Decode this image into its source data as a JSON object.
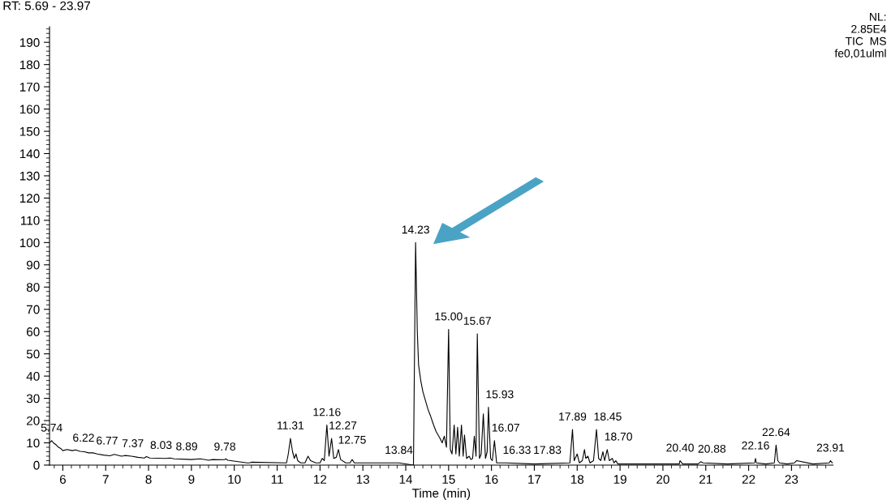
{
  "chart_data": {
    "type": "line",
    "xlabel": "Time (min)",
    "xlim": [
      5.69,
      23.97
    ],
    "xticks": [
      6,
      7,
      8,
      9,
      10,
      11,
      12,
      13,
      14,
      15,
      16,
      17,
      18,
      19,
      20,
      21,
      22,
      23
    ],
    "ylim": [
      0,
      197
    ],
    "yticks": [
      0,
      10,
      20,
      30,
      40,
      50,
      60,
      70,
      80,
      90,
      100,
      110,
      120,
      130,
      140,
      150,
      160,
      170,
      180,
      190
    ],
    "grid": false,
    "marker": "none",
    "line_style": "solid",
    "series": [
      {
        "color": "#000000",
        "x": [
          5.69,
          5.74,
          5.78,
          5.85,
          5.9,
          5.95,
          6.0,
          6.1,
          6.22,
          6.3,
          6.4,
          6.5,
          6.6,
          6.7,
          6.77,
          6.8,
          6.95,
          7.1,
          7.2,
          7.37,
          7.45,
          7.6,
          7.75,
          7.9,
          7.95,
          8.03,
          8.4,
          8.5,
          8.6,
          8.89,
          9.0,
          9.2,
          9.4,
          9.5,
          9.6,
          9.78,
          9.8,
          9.85,
          10.3,
          10.35,
          10.4,
          11.2,
          11.22,
          11.26,
          11.31,
          11.36,
          11.4,
          11.44,
          11.48,
          11.55,
          11.65,
          11.72,
          11.78,
          11.9,
          12.0,
          12.05,
          12.1,
          12.16,
          12.21,
          12.27,
          12.32,
          12.38,
          12.43,
          12.48,
          12.6,
          12.7,
          12.75,
          12.8,
          13.84,
          14.18,
          14.23,
          14.27,
          14.3,
          14.35,
          14.4,
          14.46,
          14.52,
          14.58,
          14.65,
          14.71,
          14.8,
          14.85,
          14.9,
          14.95,
          15.0,
          15.04,
          15.08,
          15.13,
          15.17,
          15.21,
          15.25,
          15.3,
          15.34,
          15.37,
          15.42,
          15.48,
          15.52,
          15.56,
          15.6,
          15.64,
          15.67,
          15.72,
          15.76,
          15.81,
          15.86,
          15.9,
          15.93,
          15.98,
          16.02,
          16.07,
          16.12,
          16.33,
          17.0,
          17.83,
          17.89,
          17.93,
          18.0,
          18.05,
          18.12,
          18.17,
          18.2,
          18.25,
          18.3,
          18.38,
          18.45,
          18.5,
          18.55,
          18.6,
          18.64,
          18.7,
          18.75,
          18.82,
          18.86,
          18.9,
          18.95,
          19.5,
          20.38,
          20.4,
          20.46,
          20.6,
          20.82,
          20.88,
          20.94,
          21.5,
          22.14,
          22.16,
          22.18,
          22.4,
          22.6,
          22.64,
          22.68,
          22.72,
          22.9,
          23.07,
          23.12,
          23.5,
          23.88,
          23.91,
          23.95
        ],
        "values": [
          10,
          11,
          10,
          9,
          8,
          7.5,
          6.5,
          7,
          6.5,
          6.8,
          6.2,
          6,
          5.5,
          5.5,
          5.2,
          5,
          4.5,
          4.2,
          4.8,
          4,
          4.3,
          4,
          3.5,
          3.2,
          3.8,
          3.2,
          3,
          3.2,
          2.8,
          2.6,
          2.5,
          2.8,
          2.2,
          2.5,
          2.4,
          2.5,
          2.8,
          2.2,
          1,
          1,
          1.3,
          1,
          1,
          5,
          12,
          6,
          3,
          5,
          2,
          1,
          1,
          4,
          2,
          1,
          1,
          3,
          2,
          18,
          4,
          12,
          3,
          3.5,
          7,
          2.5,
          1,
          1,
          2.5,
          1,
          1,
          0,
          100,
          60,
          45,
          38,
          33,
          29,
          25,
          22,
          18,
          15,
          12,
          10,
          13,
          8,
          61,
          7,
          5,
          18,
          5,
          17,
          4,
          18,
          4,
          13.5,
          3,
          4,
          2.5,
          3,
          13,
          4,
          59,
          3,
          5,
          23,
          3,
          6,
          26,
          3,
          2,
          11,
          1,
          1,
          0.5,
          1,
          16,
          2,
          5,
          1,
          2,
          7,
          3,
          4,
          1,
          2,
          16,
          3,
          2,
          6,
          2,
          7,
          2,
          3,
          1,
          2,
          0.5,
          0.5,
          0.5,
          2,
          0.5,
          0.5,
          0.5,
          1.5,
          1,
          0.5,
          1,
          3,
          1,
          0.5,
          1,
          9,
          2,
          1,
          0.5,
          1,
          2,
          0.5,
          1,
          2,
          1
        ]
      }
    ],
    "annotations": [
      "RT: 5.69 - 23.97",
      "NL:\n2.85E4\nTIC  MS\nfe0,01ulml",
      {
        "text": "5.74",
        "x": 5.74,
        "y": 11
      },
      {
        "text": "6.22",
        "x": 6.22,
        "y": 6.5
      },
      {
        "text": "6.77",
        "x": 6.77,
        "y": 5.2
      },
      {
        "text": "7.37",
        "x": 7.37,
        "y": 4
      },
      {
        "text": "8.03",
        "x": 8.03,
        "y": 3.2
      },
      {
        "text": "8.89",
        "x": 8.89,
        "y": 2.6
      },
      {
        "text": "9.78",
        "x": 9.78,
        "y": 2.5
      },
      {
        "text": "11.31",
        "x": 11.31,
        "y": 12
      },
      {
        "text": "12.16",
        "x": 12.16,
        "y": 18
      },
      {
        "text": "12.27",
        "x": 12.27,
        "y": 12
      },
      {
        "text": "12.75",
        "x": 12.75,
        "y": 2.5
      },
      {
        "text": "13.84",
        "x": 13.84,
        "y": 1
      },
      {
        "text": "14.23",
        "x": 14.23,
        "y": 100
      },
      {
        "text": "15.00",
        "x": 15.0,
        "y": 61
      },
      {
        "text": "15.67",
        "x": 15.67,
        "y": 59
      },
      {
        "text": "15.93",
        "x": 15.93,
        "y": 26
      },
      {
        "text": "16.07",
        "x": 16.07,
        "y": 11
      },
      {
        "text": "16.33",
        "x": 16.33,
        "y": 1
      },
      {
        "text": "17.83",
        "x": 17.83,
        "y": 1
      },
      {
        "text": "17.89",
        "x": 17.89,
        "y": 16
      },
      {
        "text": "18.45",
        "x": 18.45,
        "y": 16
      },
      {
        "text": "18.70",
        "x": 18.7,
        "y": 7
      },
      {
        "text": "20.40",
        "x": 20.4,
        "y": 2
      },
      {
        "text": "20.88",
        "x": 20.88,
        "y": 1.5
      },
      {
        "text": "22.16",
        "x": 22.16,
        "y": 3
      },
      {
        "text": "22.64",
        "x": 22.64,
        "y": 9
      },
      {
        "text": "23.91",
        "x": 23.91,
        "y": 2
      }
    ]
  }
}
